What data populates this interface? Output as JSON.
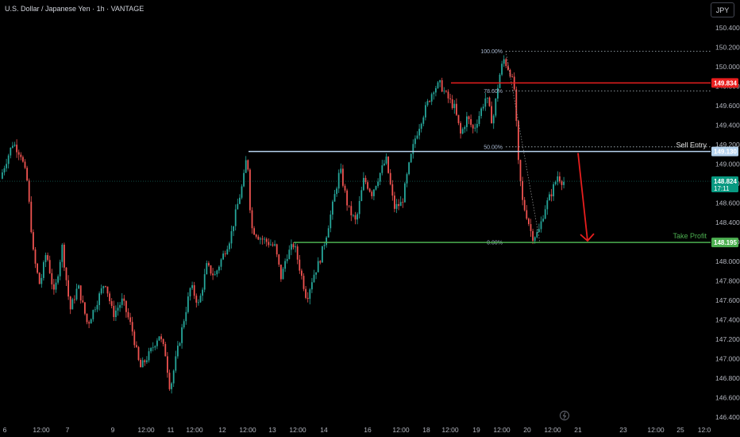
{
  "header": {
    "title": "U.S. Dollar / Japanese Yen · 1h · VANTAGE",
    "currency_button": "JPY"
  },
  "colors": {
    "up": "#26a69a",
    "down": "#ef5350",
    "bg": "#000000",
    "sell": "#e81e1e",
    "entry": "#b6d3ee",
    "tp": "#4caf50"
  },
  "chart_data": {
    "type": "candlestick",
    "title": "U.S. Dollar / Japanese Yen · 1h · VANTAGE",
    "ylim": [
      146.3,
      150.5
    ],
    "y_ticks": [
      "150.400",
      "150.200",
      "150.000",
      "149.800",
      "149.600",
      "149.400",
      "149.200",
      "149.000",
      "148.800",
      "148.600",
      "148.400",
      "148.200",
      "148.000",
      "147.800",
      "147.600",
      "147.400",
      "147.200",
      "147.000",
      "146.800",
      "146.600",
      "146.400"
    ],
    "x_ticks": [
      "6",
      "12:00",
      "7",
      "9",
      "12:00",
      "11",
      "12:00",
      "12",
      "12:00",
      "13",
      "12:00",
      "14",
      "16",
      "12:00",
      "18",
      "12:00",
      "19",
      "12:00",
      "20",
      "12:00",
      "21",
      "23",
      "12:00",
      "25",
      "12:0"
    ],
    "path": [
      [
        0,
        148.8
      ],
      [
        8,
        149.0
      ],
      [
        18,
        149.22
      ],
      [
        28,
        149.1
      ],
      [
        36,
        148.82
      ],
      [
        44,
        148.05
      ],
      [
        52,
        147.75
      ],
      [
        60,
        148.1
      ],
      [
        70,
        147.65
      ],
      [
        80,
        148.15
      ],
      [
        90,
        147.5
      ],
      [
        100,
        147.75
      ],
      [
        112,
        147.35
      ],
      [
        122,
        147.55
      ],
      [
        134,
        147.8
      ],
      [
        144,
        147.45
      ],
      [
        156,
        147.6
      ],
      [
        168,
        147.3
      ],
      [
        178,
        146.9
      ],
      [
        190,
        147.05
      ],
      [
        202,
        147.25
      ],
      [
        210,
        147.05
      ],
      [
        216,
        146.68
      ],
      [
        222,
        146.95
      ],
      [
        232,
        147.35
      ],
      [
        242,
        147.75
      ],
      [
        252,
        147.55
      ],
      [
        262,
        147.95
      ],
      [
        272,
        147.85
      ],
      [
        282,
        148.05
      ],
      [
        292,
        148.25
      ],
      [
        300,
        148.55
      ],
      [
        308,
        148.82
      ],
      [
        313,
        149.12
      ],
      [
        318,
        148.35
      ],
      [
        328,
        148.25
      ],
      [
        338,
        148.2
      ],
      [
        348,
        148.15
      ],
      [
        356,
        147.82
      ],
      [
        362,
        148.05
      ],
      [
        372,
        148.18
      ],
      [
        380,
        147.9
      ],
      [
        388,
        147.62
      ],
      [
        396,
        147.85
      ],
      [
        404,
        148.0
      ],
      [
        412,
        148.25
      ],
      [
        420,
        148.55
      ],
      [
        430,
        148.95
      ],
      [
        440,
        148.55
      ],
      [
        450,
        148.4
      ],
      [
        460,
        148.85
      ],
      [
        470,
        148.7
      ],
      [
        480,
        148.9
      ],
      [
        488,
        149.05
      ],
      [
        498,
        148.55
      ],
      [
        508,
        148.6
      ],
      [
        516,
        148.95
      ],
      [
        524,
        149.25
      ],
      [
        532,
        149.45
      ],
      [
        540,
        149.62
      ],
      [
        548,
        149.78
      ],
      [
        556,
        149.82
      ],
      [
        564,
        149.7
      ],
      [
        574,
        149.58
      ],
      [
        582,
        149.3
      ],
      [
        590,
        149.48
      ],
      [
        598,
        149.35
      ],
      [
        606,
        149.52
      ],
      [
        614,
        149.7
      ],
      [
        622,
        149.42
      ],
      [
        630,
        149.88
      ],
      [
        636,
        150.08
      ],
      [
        644,
        149.95
      ],
      [
        650,
        149.75
      ],
      [
        654,
        149.05
      ],
      [
        660,
        148.6
      ],
      [
        666,
        148.45
      ],
      [
        672,
        148.25
      ],
      [
        680,
        148.3
      ],
      [
        688,
        148.55
      ],
      [
        696,
        148.7
      ],
      [
        704,
        148.88
      ],
      [
        710,
        148.82
      ]
    ],
    "levels": {
      "sell_stop": {
        "value": 149.834,
        "label": "149.834"
      },
      "sell_entry": {
        "value": 149.13,
        "label": "149.130",
        "annotation": "Sell Entry"
      },
      "take_profit": {
        "value": 148.195,
        "label": "148.195",
        "annotation": "Take Profit"
      },
      "current": {
        "value": 148.824,
        "label": "148.824",
        "countdown": "17:11"
      }
    },
    "fib": [
      {
        "label": "100.00%",
        "value": 150.16
      },
      {
        "label": "78.60%",
        "value": 149.752
      },
      {
        "label": "50.00%",
        "value": 149.177
      },
      {
        "label": "0.00%",
        "value": 148.195
      }
    ]
  }
}
